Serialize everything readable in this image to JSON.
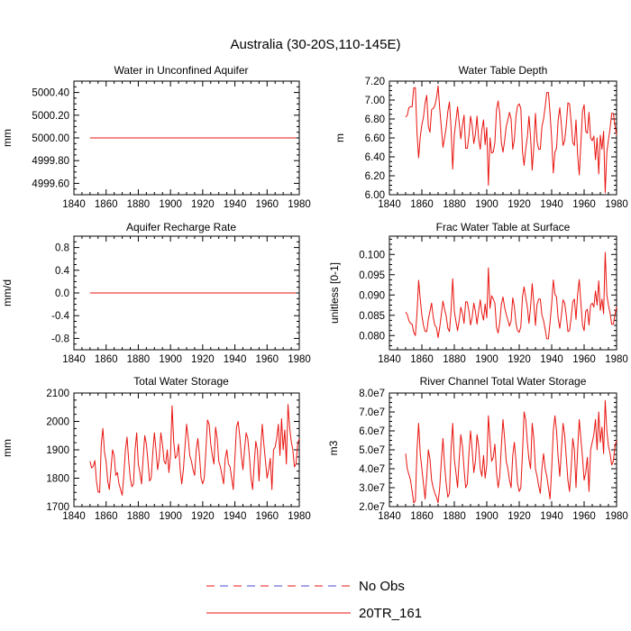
{
  "title": "Australia (30-20S,110-145E)",
  "colors": {
    "sim": "#e8140f",
    "obs_red": "#e8140f",
    "obs_blue": "#4a48cf",
    "axis": "#000000"
  },
  "chart_data": [
    {
      "type": "line",
      "title": "Water in Unconfined Aquifer",
      "ylabel": "mm",
      "xlim": [
        1840,
        1980
      ],
      "xticks": [
        1840,
        1860,
        1880,
        1900,
        1920,
        1940,
        1960,
        1980
      ],
      "ylim": [
        4999.5,
        5000.5
      ],
      "yticks": [
        4999.6,
        4999.8,
        5000.0,
        5000.2,
        5000.4
      ],
      "yticklabels": [
        "4999.60",
        "4999.80",
        "5000.00",
        "5000.20",
        "5000.40"
      ],
      "x_start": 1850,
      "x_step": 1,
      "series": [
        {
          "name": "20TR_161",
          "constant": 5000.0,
          "n": 129
        }
      ]
    },
    {
      "type": "line",
      "title": "Water Table Depth",
      "ylabel": "m",
      "xlim": [
        1840,
        1980
      ],
      "xticks": [
        1840,
        1860,
        1880,
        1900,
        1920,
        1940,
        1960,
        1980
      ],
      "ylim": [
        6.0,
        7.2
      ],
      "yticks": [
        6.0,
        6.2,
        6.4,
        6.6,
        6.8,
        7.0,
        7.2
      ],
      "yticklabels": [
        "6.00",
        "6.20",
        "6.40",
        "6.60",
        "6.80",
        "7.00",
        "7.20"
      ],
      "x_start": 1850,
      "x_step": 1,
      "series": [
        {
          "name": "20TR_161",
          "values": [
            6.82,
            6.84,
            6.92,
            6.93,
            6.93,
            7.13,
            7.13,
            6.65,
            6.39,
            6.61,
            6.74,
            6.82,
            6.97,
            7.05,
            6.72,
            6.66,
            6.9,
            6.91,
            6.94,
            7.02,
            7.15,
            6.91,
            6.71,
            6.5,
            6.6,
            6.71,
            6.88,
            6.98,
            6.7,
            6.27,
            6.63,
            6.78,
            6.93,
            6.76,
            6.59,
            6.73,
            6.84,
            6.49,
            6.49,
            6.62,
            6.83,
            6.73,
            6.54,
            6.64,
            6.83,
            6.59,
            6.48,
            6.69,
            6.79,
            6.53,
            6.71,
            6.1,
            6.6,
            6.44,
            6.45,
            6.55,
            6.9,
            6.99,
            6.86,
            6.55,
            6.45,
            6.57,
            6.72,
            6.79,
            6.87,
            6.8,
            6.48,
            6.58,
            6.83,
            6.94,
            6.96,
            6.91,
            6.46,
            6.31,
            6.48,
            6.61,
            6.83,
            6.61,
            6.26,
            6.51,
            6.86,
            6.56,
            6.48,
            6.48,
            6.72,
            6.8,
            6.93,
            7.08,
            7.08,
            6.86,
            6.59,
            6.23,
            6.45,
            6.49,
            6.79,
            6.92,
            6.74,
            6.52,
            6.57,
            6.74,
            6.97,
            6.96,
            6.77,
            6.55,
            6.52,
            6.79,
            6.42,
            6.21,
            6.54,
            6.88,
            6.95,
            6.67,
            6.65,
            6.87,
            6.6,
            6.57,
            6.62,
            6.37,
            6.6,
            6.22,
            6.63,
            6.48,
            6.67,
            6.02,
            6.45,
            6.58,
            6.7,
            6.86,
            6.86,
            6.73,
            6.63
          ]
        }
      ]
    },
    {
      "type": "line",
      "title": "Aquifer Recharge Rate",
      "ylabel": "mm/d",
      "xlim": [
        1840,
        1980
      ],
      "xticks": [
        1840,
        1860,
        1880,
        1900,
        1920,
        1940,
        1960,
        1980
      ],
      "ylim": [
        -1.0,
        1.0
      ],
      "yticks": [
        -0.8,
        -0.4,
        0.0,
        0.4,
        0.8
      ],
      "yticklabels": [
        "-0.8",
        "-0.4",
        "0.0",
        "0.4",
        "0.8"
      ],
      "x_start": 1850,
      "x_step": 1,
      "series": [
        {
          "name": "20TR_161",
          "constant": 0.0,
          "n": 129
        }
      ]
    },
    {
      "type": "line",
      "title": "Frac Water Table at Surface",
      "ylabel": "unitless [0-1]",
      "xlim": [
        1840,
        1980
      ],
      "xticks": [
        1840,
        1860,
        1880,
        1900,
        1920,
        1940,
        1960,
        1980
      ],
      "ylim": [
        0.0765,
        0.1045
      ],
      "yticks": [
        0.08,
        0.085,
        0.09,
        0.095,
        0.1
      ],
      "yticklabels": [
        "0.080",
        "0.085",
        "0.090",
        "0.095",
        "0.100"
      ],
      "x_start": 1850,
      "x_step": 1,
      "series": [
        {
          "name": "20TR_161",
          "values": [
            0.0858,
            0.0852,
            0.0837,
            0.083,
            0.0828,
            0.0808,
            0.08,
            0.0855,
            0.0936,
            0.089,
            0.085,
            0.0825,
            0.081,
            0.081,
            0.084,
            0.086,
            0.088,
            0.0845,
            0.0825,
            0.082,
            0.0795,
            0.082,
            0.0852,
            0.0885,
            0.0865,
            0.0848,
            0.0818,
            0.081,
            0.0862,
            0.094,
            0.086,
            0.0835,
            0.0812,
            0.0837,
            0.087,
            0.0855,
            0.083,
            0.0883,
            0.0883,
            0.086,
            0.0826,
            0.0845,
            0.088,
            0.086,
            0.0828,
            0.086,
            0.0888,
            0.0855,
            0.0838,
            0.0878,
            0.0844,
            0.0967,
            0.0867,
            0.0898,
            0.089,
            0.088,
            0.082,
            0.0806,
            0.0832,
            0.0877,
            0.0895,
            0.087,
            0.0852,
            0.0838,
            0.0823,
            0.0836,
            0.0893,
            0.0872,
            0.083,
            0.0812,
            0.0808,
            0.0822,
            0.0895,
            0.092,
            0.0894,
            0.087,
            0.083,
            0.087,
            0.0928,
            0.088,
            0.0825,
            0.0877,
            0.089,
            0.089,
            0.085,
            0.0837,
            0.0815,
            0.0792,
            0.0792,
            0.0832,
            0.0878,
            0.0937,
            0.0902,
            0.0895,
            0.0842,
            0.0818,
            0.085,
            0.0888,
            0.088,
            0.085,
            0.081,
            0.0812,
            0.0844,
            0.0883,
            0.089,
            0.084,
            0.0902,
            0.0938,
            0.0881,
            0.0826,
            0.0812,
            0.086,
            0.0865,
            0.0826,
            0.0875,
            0.088,
            0.087,
            0.091,
            0.0875,
            0.0935,
            0.0862,
            0.089,
            0.0854,
            0.1005,
            0.09,
            0.0875,
            0.0855,
            0.0828,
            0.0828,
            0.0852,
            0.087
          ]
        }
      ]
    },
    {
      "type": "line",
      "title": "Total Water Storage",
      "ylabel": "mm",
      "xlim": [
        1840,
        1980
      ],
      "xticks": [
        1840,
        1860,
        1880,
        1900,
        1920,
        1940,
        1960,
        1980
      ],
      "ylim": [
        1700,
        2100
      ],
      "yticks": [
        1700,
        1800,
        1900,
        2000,
        2100
      ],
      "yticklabels": [
        "1700",
        "1800",
        "1900",
        "2000",
        "2100"
      ],
      "x_start": 1850,
      "x_step": 1,
      "series": [
        {
          "name": "20TR_161",
          "values": [
            1860,
            1836,
            1842,
            1862,
            1790,
            1752,
            1750,
            1920,
            1975,
            1890,
            1860,
            1790,
            1760,
            1830,
            1900,
            1880,
            1810,
            1820,
            1780,
            1760,
            1740,
            1810,
            1900,
            1945,
            1865,
            1800,
            1770,
            1780,
            1900,
            1960,
            1850,
            1820,
            1780,
            1870,
            1950,
            1920,
            1860,
            1790,
            1800,
            1890,
            1960,
            1900,
            1830,
            1870,
            1960,
            1920,
            1860,
            1850,
            1900,
            1820,
            1880,
            2055,
            1930,
            1870,
            1880,
            1920,
            1830,
            1780,
            1830,
            1910,
            1990,
            1940,
            1880,
            1860,
            1830,
            1810,
            1900,
            1940,
            1880,
            1800,
            1780,
            1800,
            1900,
            2005,
            1990,
            1920,
            1880,
            1850,
            1980,
            1940,
            1860,
            1840,
            1810,
            1780,
            1870,
            1900,
            1850,
            1840,
            1800,
            1760,
            1870,
            1980,
            2000,
            1950,
            1880,
            1830,
            1900,
            1960,
            1940,
            1880,
            1800,
            1760,
            1850,
            1930,
            1900,
            1790,
            1900,
            1990,
            1920,
            1860,
            1800,
            1830,
            1870,
            1760,
            1900,
            1910,
            1940,
            1990,
            1880,
            2010,
            1900,
            1970,
            1850,
            2060,
            1980,
            1930,
            1900,
            1840,
            1850,
            1920,
            1940
          ]
        }
      ]
    },
    {
      "type": "line",
      "title": "River Channel Total Water Storage",
      "ylabel": "m3",
      "xlim": [
        1840,
        1980
      ],
      "xticks": [
        1840,
        1860,
        1880,
        1900,
        1920,
        1940,
        1960,
        1980
      ],
      "ylim": [
        20000000,
        80000000
      ],
      "yticks": [
        20000000,
        30000000,
        40000000,
        50000000,
        60000000,
        70000000,
        80000000
      ],
      "yticklabels": [
        "2.0e7",
        "3.0e7",
        "4.0e7",
        "5.0e7",
        "6.0e7",
        "7.0e7",
        "8.0e7"
      ],
      "x_start": 1850,
      "x_step": 1,
      "series": [
        {
          "name": "20TR_161",
          "values": [
            48000000,
            40000000,
            37000000,
            34000000,
            28000000,
            22000000,
            23000000,
            50000000,
            64000000,
            48000000,
            40000000,
            32000000,
            24000000,
            36000000,
            50000000,
            45000000,
            34000000,
            30000000,
            27000000,
            25000000,
            22000000,
            30000000,
            44000000,
            56000000,
            42000000,
            32000000,
            25000000,
            27000000,
            50000000,
            64000000,
            45000000,
            38000000,
            30000000,
            45000000,
            58000000,
            52000000,
            40000000,
            30000000,
            32000000,
            48000000,
            60000000,
            50000000,
            38000000,
            44000000,
            58000000,
            52000000,
            40000000,
            36000000,
            47000000,
            35000000,
            42000000,
            68000000,
            55000000,
            44000000,
            46000000,
            53000000,
            38000000,
            30000000,
            36000000,
            52000000,
            66000000,
            56000000,
            44000000,
            40000000,
            34000000,
            30000000,
            47000000,
            54000000,
            44000000,
            32000000,
            28000000,
            30000000,
            48000000,
            70000000,
            66000000,
            54000000,
            45000000,
            40000000,
            64000000,
            56000000,
            40000000,
            36000000,
            31000000,
            27000000,
            40000000,
            48000000,
            40000000,
            36000000,
            30000000,
            24000000,
            40000000,
            60000000,
            68000000,
            60000000,
            46000000,
            36000000,
            50000000,
            64000000,
            58000000,
            46000000,
            34000000,
            28000000,
            40000000,
            56000000,
            50000000,
            30000000,
            50000000,
            66000000,
            56000000,
            46000000,
            34000000,
            38000000,
            46000000,
            28000000,
            50000000,
            54000000,
            58000000,
            66000000,
            50000000,
            70000000,
            54000000,
            62000000,
            48000000,
            76000000,
            60000000,
            52000000,
            48000000,
            42000000,
            44000000,
            52000000,
            55000000
          ]
        }
      ]
    }
  ],
  "legend": [
    {
      "label": "No Obs",
      "style": "dashed"
    },
    {
      "label": "20TR_161",
      "style": "solid"
    }
  ]
}
